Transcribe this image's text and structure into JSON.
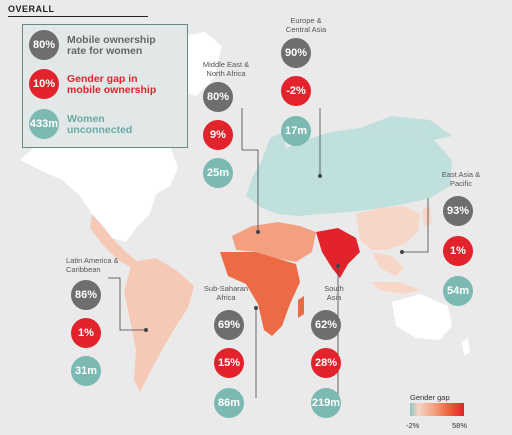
{
  "title": "OVERALL",
  "legend": {
    "ownership": {
      "value": "80%",
      "label_line1": "Mobile ownership",
      "label_line2": "rate for women"
    },
    "gap": {
      "value": "10%",
      "label_line1": "Gender gap in",
      "label_line2": "mobile ownership"
    },
    "unconnected": {
      "value": "433m",
      "label_line1": "Women",
      "label_line2": "unconnected"
    }
  },
  "regions": {
    "mena": {
      "name_line1": "Middle East &",
      "name_line2": "North Africa",
      "ownership": "80%",
      "gap": "9%",
      "unconnected": "25m"
    },
    "eca": {
      "name_line1": "Europe &",
      "name_line2": "Central Asia",
      "ownership": "90%",
      "gap": "-2%",
      "unconnected": "17m"
    },
    "eap": {
      "name_line1": "East Asia &",
      "name_line2": "Pacific",
      "ownership": "93%",
      "gap": "1%",
      "unconnected": "54m"
    },
    "lac": {
      "name_line1": "Latin America &",
      "name_line2": "Caribbean",
      "ownership": "86%",
      "gap": "1%",
      "unconnected": "31m"
    },
    "ssa": {
      "name_line1": "Sub-Saharan",
      "name_line2": "Africa",
      "ownership": "69%",
      "gap": "15%",
      "unconnected": "86m"
    },
    "sa": {
      "name_line1": "South",
      "name_line2": "Asia",
      "ownership": "62%",
      "gap": "28%",
      "unconnected": "219m"
    }
  },
  "gender_gap_scale": {
    "label": "Gender gap",
    "min": "-2%",
    "max": "58%"
  },
  "colors": {
    "grey": "#6e6e6e",
    "red": "#e3232b",
    "teal": "#7cb9b3",
    "land": "#ffffff"
  }
}
